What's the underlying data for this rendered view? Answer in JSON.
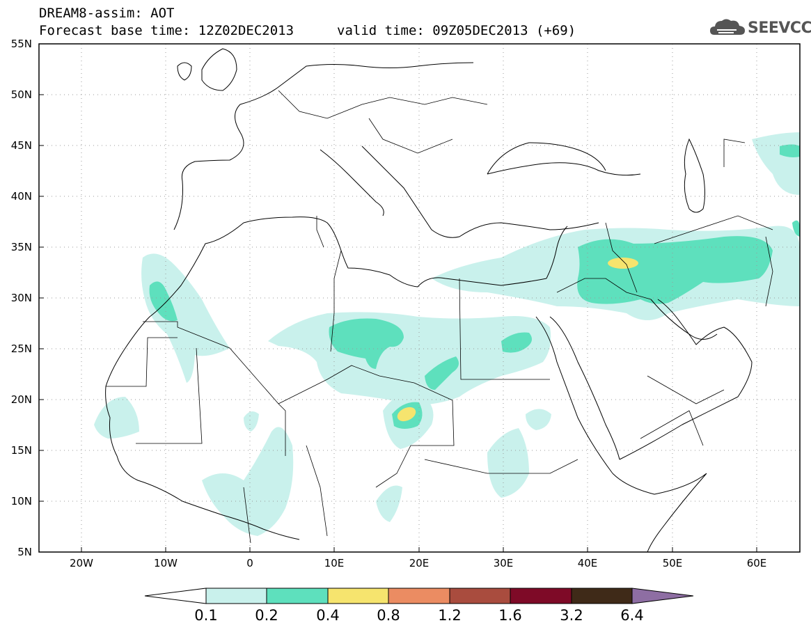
{
  "header": {
    "line1": "DREAM8-assim: AOT",
    "line2": "Forecast base time: 12Z02DEC2013",
    "line3": "valid time: 09Z05DEC2013 (+69)"
  },
  "logo": {
    "text": "SEEVCCC",
    "icon": "cloud-icon"
  },
  "axes": {
    "lat_labels": [
      "55N",
      "50N",
      "45N",
      "40N",
      "35N",
      "30N",
      "25N",
      "20N",
      "15N",
      "10N",
      "5N"
    ],
    "lon_labels": [
      "20W",
      "10W",
      "0",
      "10E",
      "20E",
      "30E",
      "40E",
      "50E",
      "60E"
    ],
    "lon_range": [
      -25,
      65
    ],
    "lat_range": [
      5,
      55
    ]
  },
  "colorbar": {
    "labels": [
      "0.1",
      "0.2",
      "0.4",
      "0.8",
      "1.2",
      "1.6",
      "3.2",
      "6.4"
    ],
    "colors": [
      "#c9f1ec",
      "#5ee0bd",
      "#f6e46e",
      "#eb8c62",
      "#a94c3e",
      "#7e0a27",
      "#3f2a18",
      "#8e6ea3"
    ],
    "min_arrow_color": "#ffffff"
  },
  "colors": {
    "light": "#c9f1ec",
    "medium": "#5ee0bd",
    "high": "#f6e46e",
    "coast": "#000000",
    "grid": "#999999"
  }
}
